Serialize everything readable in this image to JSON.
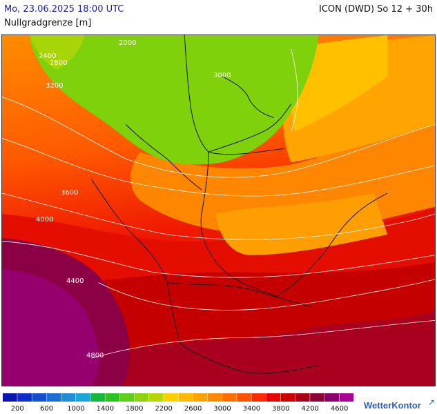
{
  "header": {
    "date_label": "Mo, 23.06.2025 18:00 UTC",
    "parameter_label": "Nullgradgrenze [m]",
    "model_label": "ICON (DWD) So 12 + 30h"
  },
  "map": {
    "contour_labels": [
      "2000",
      "2400",
      "2800",
      "3000",
      "3200",
      "3600",
      "4000",
      "4400",
      "4800"
    ]
  },
  "legend": {
    "colors": [
      "#0a16b0",
      "#0b2fc8",
      "#1250d2",
      "#1a6fd6",
      "#1e8fd8",
      "#17a8d6",
      "#14b83a",
      "#2cc51f",
      "#5dcf14",
      "#8bd40c",
      "#b5d605",
      "#ffd000",
      "#ffba00",
      "#ffa200",
      "#ff8a00",
      "#ff7000",
      "#ff5200",
      "#ff2a00",
      "#e90000",
      "#cc0000",
      "#ad0018",
      "#8d0036",
      "#8a006a",
      "#ad0095"
    ],
    "ticks": [
      "200",
      "600",
      "1000",
      "1400",
      "1800",
      "2200",
      "2600",
      "3000",
      "3400",
      "3800",
      "4200",
      "4600"
    ]
  },
  "brand": {
    "name": "WetterKontor",
    "mark": "↗"
  }
}
